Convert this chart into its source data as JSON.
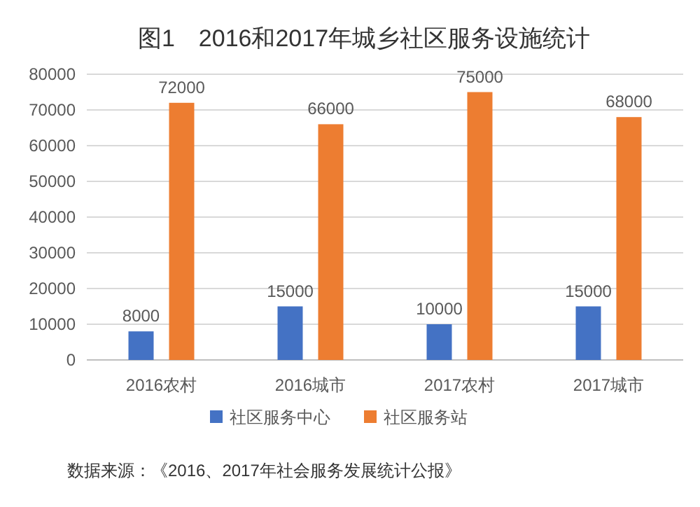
{
  "chart_data": {
    "type": "bar",
    "title": "图1　2016和2017年城乡社区服务设施统计",
    "categories": [
      "2016农村",
      "2016城市",
      "2017农村",
      "2017城市"
    ],
    "series": [
      {
        "name": "社区服务中心",
        "color": "#4472c4",
        "values": [
          8000,
          15000,
          10000,
          15000
        ]
      },
      {
        "name": "社区服务站",
        "color": "#ed7d31",
        "values": [
          72000,
          66000,
          75000,
          68000
        ]
      }
    ],
    "ylim": [
      0,
      80000
    ],
    "yticks": [
      0,
      10000,
      20000,
      30000,
      40000,
      50000,
      60000,
      70000,
      80000
    ],
    "grid": "y",
    "legend": "bottom",
    "data_labels": true,
    "annotations": [
      "数据来源：《2016、2017年社会服务发展统计公报》"
    ]
  }
}
